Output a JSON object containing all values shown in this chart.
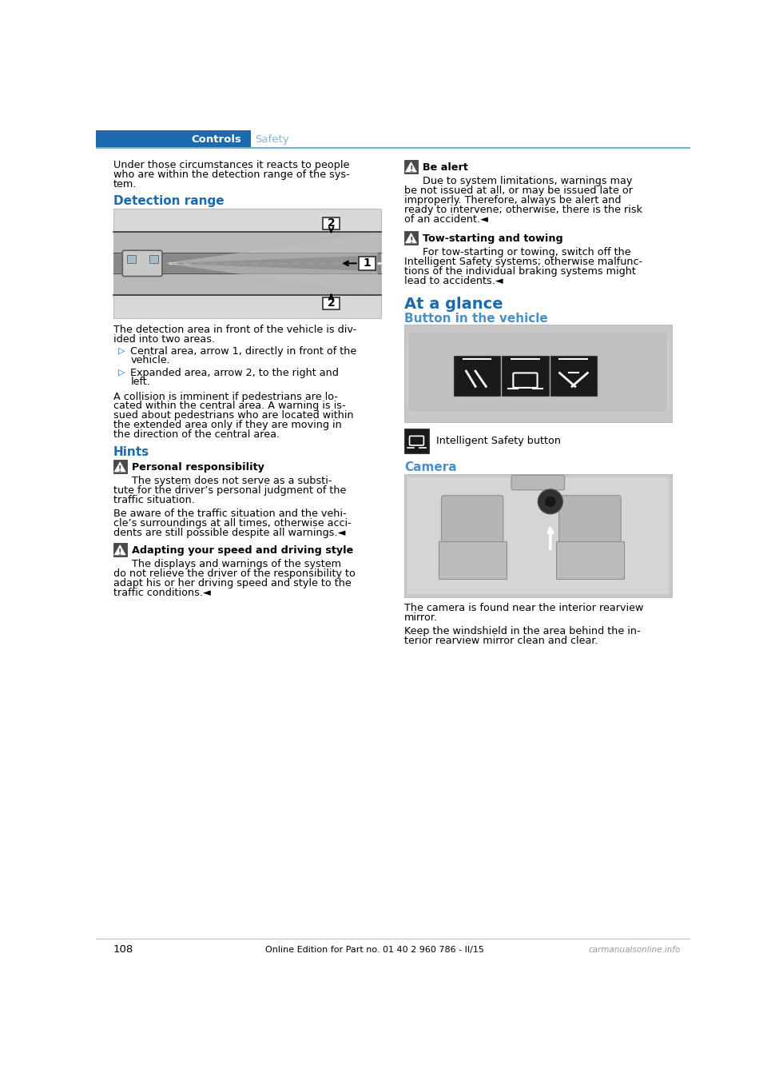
{
  "page_number": "108",
  "footer_text": "Online Edition for Part no. 01 40 2 960 786 - II/15",
  "footer_watermark": "carmanualsonline.info",
  "header_tab1": "Controls",
  "header_tab2": "Safety",
  "header_bg": "#1a6aad",
  "header_text_active": "#ffffff",
  "header_tab2_color": "#8ab4d8",
  "blue_heading_color": "#1a6aad",
  "blue_subhead_color": "#4a90c4",
  "body_text_color": "#000000",
  "bullet_color": "#1a6aad",
  "divider_color": "#7aabce",
  "para1_lines": [
    "Under those circumstances it reacts to people",
    "who are within the detection range of the sys-",
    "tem."
  ],
  "heading_detection": "Detection range",
  "detection_body_lines": [
    "The detection area in front of the vehicle is div-",
    "ided into two areas."
  ],
  "bullet1_lines": [
    "Central area, arrow 1, directly in front of the",
    "vehicle."
  ],
  "bullet2_lines": [
    "Expanded area, arrow 2, to the right and",
    "left."
  ],
  "para_collision_lines": [
    "A collision is imminent if pedestrians are lo-",
    "cated within the central area. A warning is is-",
    "sued about pedestrians who are located within",
    "the extended area only if they are moving in",
    "the direction of the central area."
  ],
  "heading_hints": "Hints",
  "hint1_title": "Personal responsibility",
  "hint1_body_lines": [
    "The system does not serve as a substi-",
    "tute for the driver’s personal judgment of the",
    "traffic situation."
  ],
  "hint1_body2_lines": [
    "Be aware of the traffic situation and the vehi-",
    "cle’s surroundings at all times, otherwise acci-",
    "dents are still possible despite all warnings.◄"
  ],
  "hint2_title": "Adapting your speed and driving style",
  "hint2_body_lines": [
    "The displays and warnings of the system",
    "do not relieve the driver of the responsibility to",
    "adapt his or her driving speed and style to the",
    "traffic conditions.◄"
  ],
  "right_hint1_title": "Be alert",
  "right_hint1_line1": "Due to system limitations, warnings may",
  "right_hint1_rest_lines": [
    "be not issued at all, or may be issued late or",
    "improperly. Therefore, always be alert and",
    "ready to intervene; otherwise, there is the risk",
    "of an accident.◄"
  ],
  "right_hint2_title": "Tow-starting and towing",
  "right_hint2_line1": "For tow-starting or towing, switch off the",
  "right_hint2_rest_lines": [
    "Intelligent Safety systems; otherwise malfunc-",
    "tions of the individual braking systems might",
    "lead to accidents.◄"
  ],
  "heading_glance": "At a glance",
  "heading_button": "Button in the vehicle",
  "caption_button": "Intelligent Safety button",
  "heading_camera": "Camera",
  "caption_camera1_lines": [
    "The camera is found near the interior rearview",
    "mirror."
  ],
  "caption_camera2_lines": [
    "Keep the windshield in the area behind the in-",
    "terior rearview mirror clean and clear."
  ]
}
